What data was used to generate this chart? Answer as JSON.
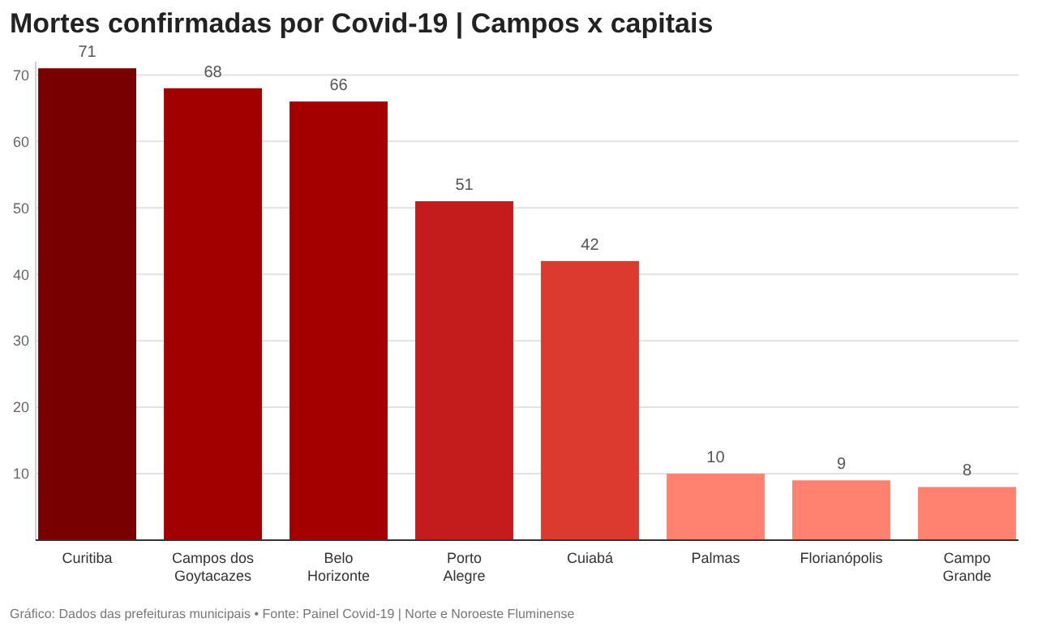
{
  "chart_data": {
    "type": "bar",
    "title": "Mortes confirmadas por Covid-19 | Campos x capitais",
    "categories": [
      "Curitiba",
      "Campos dos Goytacazes",
      "Belo Horizonte",
      "Porto Alegre",
      "Cuiabá",
      "Palmas",
      "Florianópolis",
      "Campo Grande"
    ],
    "values": [
      71,
      68,
      66,
      51,
      42,
      10,
      9,
      8
    ],
    "colors": [
      "#780000",
      "#a20000",
      "#a40000",
      "#c41c1c",
      "#dc3a2e",
      "#ff8270",
      "#ff8270",
      "#ff8270"
    ],
    "ylim": [
      0,
      72
    ],
    "yticks": [
      10,
      20,
      30,
      40,
      50,
      60,
      70
    ],
    "grid": "y",
    "data_labels": true,
    "annotations": [
      "Gráfico: Dados das prefeituras municipais • Fonte: Painel Covid-19 | Norte e Noroeste Fluminense"
    ]
  }
}
